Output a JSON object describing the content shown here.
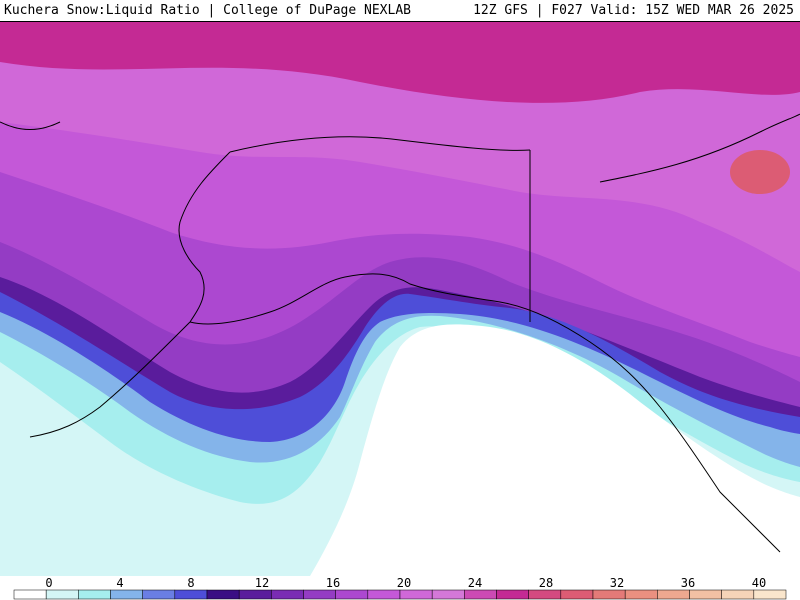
{
  "header": {
    "title": "Kuchera Snow:Liquid Ratio | College of DuPage NEXLAB",
    "run_info": "12Z GFS | F027 Valid: 15Z WED MAR 26 2025"
  },
  "map": {
    "region": "Alaska",
    "colors": {
      "ocean_blank": "#ffffff",
      "band_0_4": "#d4f4f4",
      "band_4_8": "#a8ecec",
      "band_8_12": "#5a6ee0",
      "band_12_16": "#4a1e9a",
      "band_16_20": "#8a3ac8",
      "band_20_24": "#c45ad8",
      "band_24_28": "#d06ad6",
      "band_28_32": "#c42a9a",
      "band_32_36": "#e06070",
      "borders": "#000000"
    }
  },
  "legend": {
    "labels": [
      "0",
      "4",
      "8",
      "12",
      "16",
      "20",
      "24",
      "28",
      "32",
      "36",
      "40"
    ],
    "colors": [
      "#ffffff",
      "#d4f6f6",
      "#a6eeee",
      "#84b4ea",
      "#6a7ee4",
      "#4e4ed8",
      "#3a0e84",
      "#5a1c9c",
      "#7a2cb4",
      "#943cc4",
      "#ac48d0",
      "#c458d8",
      "#d068d8",
      "#d478d8",
      "#cc4ab4",
      "#c42a94",
      "#d44a80",
      "#dc5c74",
      "#e47a78",
      "#ea9080",
      "#eea890",
      "#f2c0a4",
      "#f6d4b8",
      "#fae6cc"
    ]
  }
}
